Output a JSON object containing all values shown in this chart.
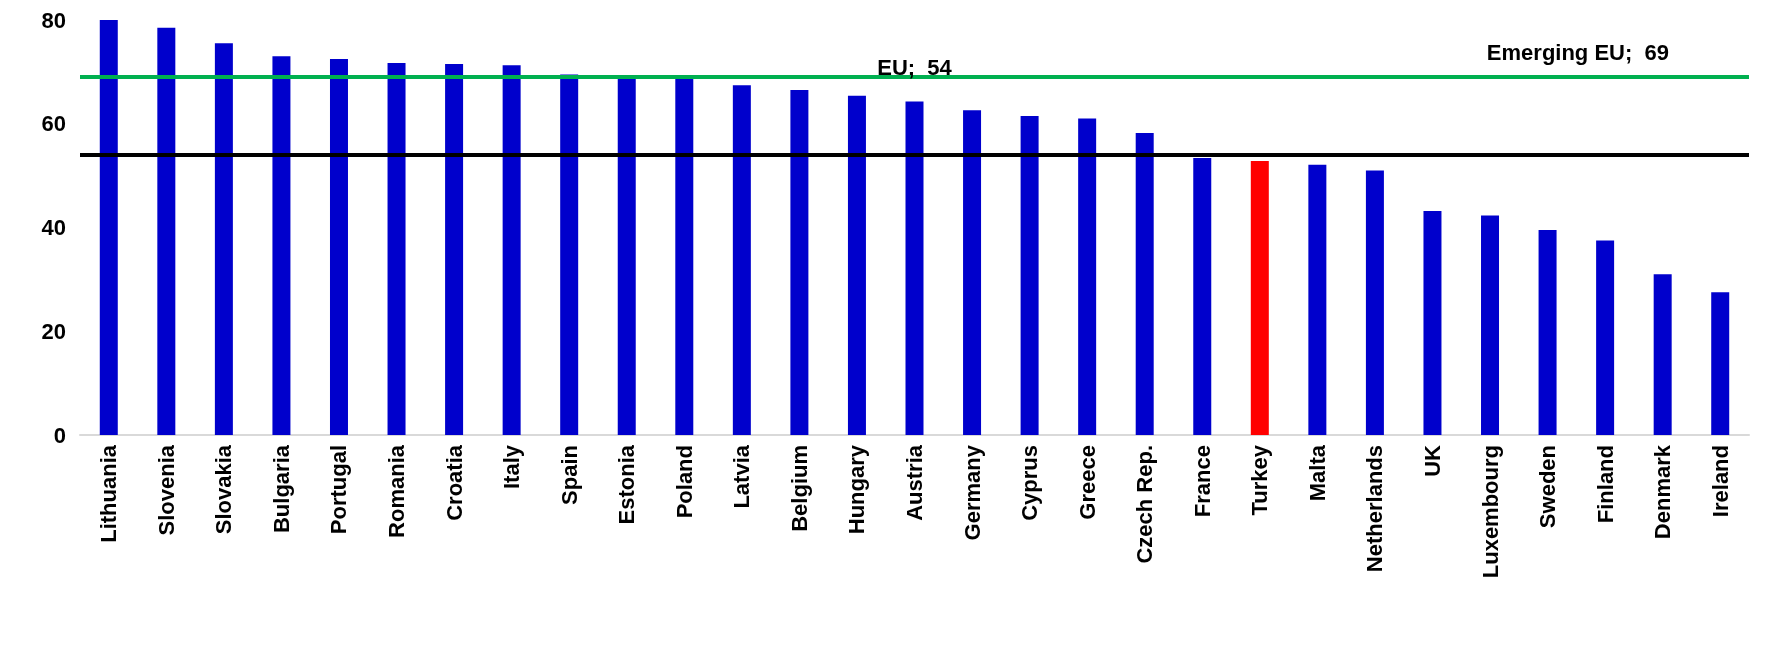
{
  "chart_data": {
    "type": "bar",
    "categories": [
      "Lithuania",
      "Slovenia",
      "Slovakia",
      "Bulgaria",
      "Portugal",
      "Romania",
      "Croatia",
      "Italy",
      "Spain",
      "Estonia",
      "Poland",
      "Latvia",
      "Belgium",
      "Hungary",
      "Austria",
      "Germany",
      "Cyprus",
      "Greece",
      "Czech Rep.",
      "France",
      "Turkey",
      "Malta",
      "Netherlands",
      "UK",
      "Luxembourg",
      "Sweden",
      "Finland",
      "Denmark",
      "Ireland"
    ],
    "values": [
      80,
      78.5,
      75.5,
      73,
      72.5,
      71.7,
      71.5,
      71.3,
      69.5,
      69,
      68.7,
      67.4,
      66.5,
      65.4,
      64.3,
      62.6,
      61.5,
      61,
      58.2,
      53.4,
      52.8,
      52.1,
      51,
      43.2,
      42.3,
      39.5,
      37.5,
      31,
      27.5
    ],
    "colors": [
      "#0000cc",
      "#0000cc",
      "#0000cc",
      "#0000cc",
      "#0000cc",
      "#0000cc",
      "#0000cc",
      "#0000cc",
      "#0000cc",
      "#0000cc",
      "#0000cc",
      "#0000cc",
      "#0000cc",
      "#0000cc",
      "#0000cc",
      "#0000cc",
      "#0000cc",
      "#0000cc",
      "#0000cc",
      "#0000cc",
      "#ff0000",
      "#0000cc",
      "#0000cc",
      "#0000cc",
      "#0000cc",
      "#0000cc",
      "#0000cc",
      "#0000cc",
      "#0000cc"
    ],
    "ylim": [
      0,
      80
    ],
    "yticks": [
      0,
      20,
      40,
      60,
      80
    ],
    "grid": false,
    "ref_lines": [
      {
        "axis": "y",
        "value": 69,
        "label": "Emerging EU;  69",
        "color": "#00b050"
      },
      {
        "axis": "y",
        "value": 54,
        "label": "EU;  54",
        "color": "#000000"
      }
    ]
  }
}
